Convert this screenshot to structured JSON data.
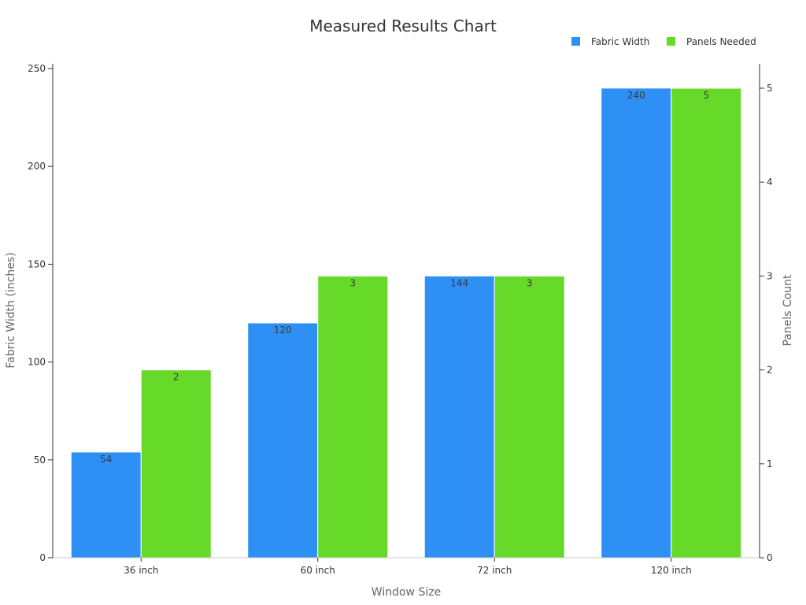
{
  "chart_data": {
    "type": "bar",
    "title": "Measured Results Chart",
    "xlabel": "Window Size",
    "ylabel": "Fabric Width (inches)",
    "y2label": "Panels Count",
    "categories": [
      "36 inch",
      "60 inch",
      "72 inch",
      "120 inch"
    ],
    "series": [
      {
        "name": "Fabric Width",
        "axis": "left",
        "color": "#2e90f5",
        "values": [
          54,
          120,
          144,
          240
        ],
        "labels": [
          "54",
          "120",
          "144",
          "240"
        ]
      },
      {
        "name": "Panels Needed",
        "axis": "right",
        "color": "#66d929",
        "values": [
          2,
          3,
          3,
          5
        ],
        "labels": [
          "2",
          "3",
          "3",
          "5"
        ]
      }
    ],
    "ylim": [
      0,
      250
    ],
    "y2lim": [
      0,
      5.2
    ],
    "yticks": [
      0,
      50,
      100,
      150,
      200,
      250
    ],
    "yticks_labels": [
      "0",
      "50",
      "100",
      "150",
      "200",
      "250"
    ],
    "y2ticks": [
      0,
      1,
      2,
      3,
      4,
      5
    ],
    "y2ticks_labels": [
      "0",
      "1",
      "2",
      "3",
      "4",
      "5"
    ],
    "grid": false,
    "legend_position": "top-right"
  }
}
